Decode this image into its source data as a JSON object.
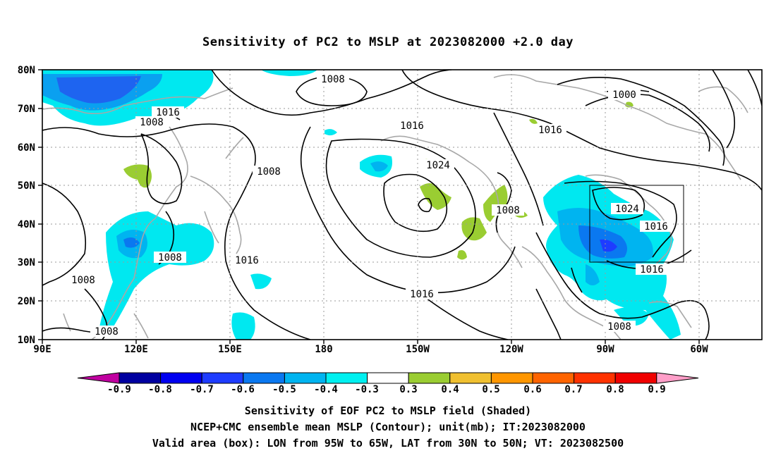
{
  "title": "Sensitivity of PC2 to MSLP at 2023082000 +2.0 day",
  "map": {
    "lat_ticks": [
      "80N",
      "70N",
      "60N",
      "50N",
      "40N",
      "30N",
      "20N",
      "10N"
    ],
    "lon_ticks": [
      "90E",
      "120E",
      "150E",
      "180",
      "150W",
      "120W",
      "90W",
      "60W"
    ],
    "lon_range_deg_east": [
      90,
      320
    ],
    "lat_range": [
      10,
      80
    ],
    "grid_lines": "dotted",
    "contour_color": "#000000",
    "coastline_color": "#a8a8a8",
    "contour_labels": [
      "1008",
      "1016",
      "1008",
      "1016",
      "1008",
      "1008",
      "1016",
      "1024",
      "1008",
      "1016",
      "1000",
      "1024",
      "1016",
      "1016",
      "1008",
      "1008",
      "1008",
      "1016",
      "1008"
    ],
    "valid_area_box": {
      "lon_west": "95W",
      "lon_east": "65W",
      "lat_south": "30N",
      "lat_north": "50N"
    }
  },
  "colorbar": {
    "labels": [
      "-0.9",
      "-0.8",
      "-0.7",
      "-0.6",
      "-0.5",
      "-0.4",
      "-0.3",
      "0.3",
      "0.4",
      "0.5",
      "0.6",
      "0.7",
      "0.8",
      "0.9"
    ],
    "colors": [
      "#0000a0",
      "#0000f0",
      "#1e3cff",
      "#0a78f0",
      "#00b4f0",
      "#00f0f0",
      "#ffffff",
      "#9acd32",
      "#f0c030",
      "#ff9600",
      "#ff6400",
      "#ff3200",
      "#f00000"
    ],
    "left_arrow_color": "#c000a0",
    "right_arrow_color": "#ff9ec8"
  },
  "captions": {
    "line1": "Sensitivity of EOF PC2 to MSLP field (Shaded)",
    "line2": "NCEP+CMC ensemble mean MSLP (Contour); unit(mb); IT:2023082000",
    "line3": "Valid area (box): LON from 95W to 65W, LAT from 30N to 50N; VT: 2023082500"
  }
}
